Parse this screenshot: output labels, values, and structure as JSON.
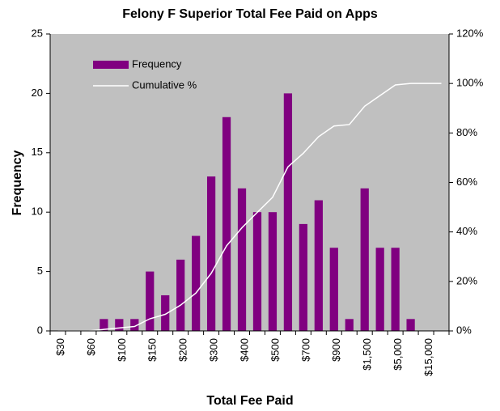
{
  "chart_data": {
    "type": "histogram-pareto",
    "title": "Felony F Superior Total Fee Paid on Apps",
    "x_label": "Total Fee Paid",
    "y_label": "Frequency",
    "categories": [
      "$30",
      null,
      "$60",
      null,
      "$100",
      null,
      "$150",
      null,
      "$200",
      null,
      "$300",
      null,
      "$400",
      null,
      "$500",
      null,
      "$700",
      null,
      "$900",
      null,
      "$1,500",
      null,
      "$5,000",
      null,
      "$15,000",
      null
    ],
    "series": [
      {
        "name": "Frequency",
        "type": "bar",
        "color": "#800080",
        "values": [
          0,
          0,
          0,
          1,
          1,
          1,
          5,
          3,
          6,
          8,
          13,
          18,
          12,
          10,
          10,
          20,
          9,
          11,
          7,
          1,
          12,
          7,
          7,
          1,
          0,
          0
        ]
      },
      {
        "name": "Cumulative %",
        "type": "line",
        "color": "#ffffff",
        "axis": "y2",
        "values": [
          0,
          0,
          0,
          0.6,
          1.2,
          1.8,
          4.9,
          6.7,
          10.4,
          15.3,
          23.3,
          34.4,
          41.7,
          47.9,
          54.0,
          66.3,
          71.8,
          78.5,
          82.8,
          83.4,
          90.8,
          95.1,
          99.4,
          100,
          100,
          100
        ]
      }
    ],
    "ylim": [
      0,
      25
    ],
    "yticks": [
      0,
      5,
      10,
      15,
      20,
      25
    ],
    "y2lim": [
      0,
      120
    ],
    "y2ticks": [
      {
        "value": 0,
        "label": "0%"
      },
      {
        "value": 20,
        "label": "20%"
      },
      {
        "value": 40,
        "label": "40%"
      },
      {
        "value": 60,
        "label": "60%"
      },
      {
        "value": 80,
        "label": "80%"
      },
      {
        "value": 100,
        "label": "100%"
      },
      {
        "value": 120,
        "label": "120%"
      }
    ],
    "plot_background": "#c0c0c0",
    "legend": "upper left"
  }
}
